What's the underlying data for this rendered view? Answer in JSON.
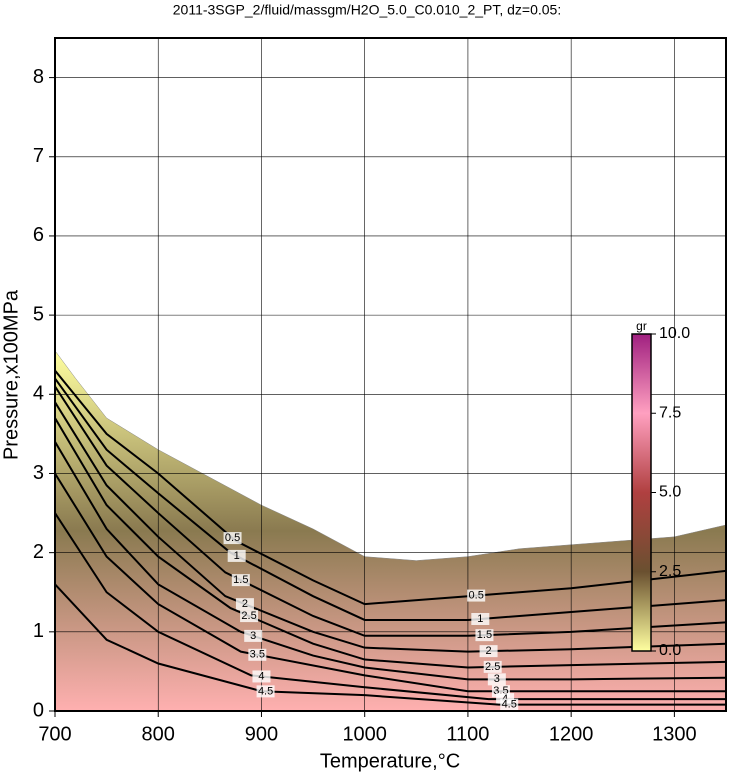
{
  "chart_data": {
    "type": "contour",
    "title": "2011-3SGP_2/fluid/massgm/H2O_5.0_C0.010_2_PT, dz=0.05:",
    "x_label": "Temperature,°C",
    "y_label": "Pressure,x100MPa",
    "xlim": [
      700,
      1350
    ],
    "ylim": [
      0,
      8.5
    ],
    "xticks": [
      700,
      800,
      900,
      1000,
      1100,
      1200,
      1300
    ],
    "yticks": [
      0,
      1,
      2,
      3,
      4,
      5,
      6,
      7,
      8
    ],
    "grid": true,
    "line_color": "#000000",
    "region": {
      "x": [
        700,
        720,
        750,
        800,
        850,
        900,
        950,
        1000,
        1050,
        1100,
        1150,
        1200,
        1250,
        1300,
        1350
      ],
      "y": [
        4.55,
        4.2,
        3.7,
        3.3,
        2.95,
        2.6,
        2.3,
        1.95,
        1.9,
        1.95,
        2.05,
        2.1,
        2.15,
        2.2,
        2.35
      ],
      "colors": [
        "#ffffa0",
        "#8a7a50",
        "#ffb0b0"
      ]
    },
    "series": [
      {
        "name": "0.5",
        "x": [
          700,
          750,
          800,
          875,
          950,
          1000,
          1100,
          1200,
          1350
        ],
        "values": [
          4.3,
          3.5,
          3.0,
          2.15,
          1.65,
          1.35,
          1.45,
          1.55,
          1.77
        ]
      },
      {
        "name": "1",
        "x": [
          700,
          750,
          800,
          870,
          950,
          1000,
          1100,
          1200,
          1350
        ],
        "values": [
          4.2,
          3.3,
          2.75,
          2.0,
          1.45,
          1.15,
          1.15,
          1.25,
          1.4
        ]
      },
      {
        "name": "1.5",
        "x": [
          700,
          750,
          800,
          865,
          950,
          1000,
          1100,
          1200,
          1350
        ],
        "values": [
          4.1,
          3.1,
          2.5,
          1.75,
          1.2,
          0.95,
          0.95,
          1.0,
          1.12
        ]
      },
      {
        "name": "2",
        "x": [
          700,
          750,
          800,
          865,
          950,
          1000,
          1100,
          1200,
          1350
        ],
        "values": [
          3.9,
          2.85,
          2.2,
          1.45,
          1.0,
          0.8,
          0.75,
          0.78,
          0.85
        ]
      },
      {
        "name": "2.5",
        "x": [
          700,
          750,
          800,
          870,
          950,
          1000,
          1100,
          1200,
          1350
        ],
        "values": [
          3.7,
          2.6,
          1.95,
          1.3,
          0.85,
          0.65,
          0.55,
          0.58,
          0.62
        ]
      },
      {
        "name": "3",
        "x": [
          700,
          750,
          800,
          880,
          950,
          1000,
          1100,
          1200,
          1350
        ],
        "values": [
          3.4,
          2.3,
          1.6,
          1.0,
          0.7,
          0.55,
          0.4,
          0.4,
          0.42
        ]
      },
      {
        "name": "3.5",
        "x": [
          700,
          750,
          800,
          880,
          1000,
          1100,
          1350
        ],
        "values": [
          3.0,
          1.95,
          1.35,
          0.75,
          0.45,
          0.25,
          0.25
        ]
      },
      {
        "name": "4",
        "x": [
          700,
          750,
          800,
          890,
          1000,
          1120,
          1350
        ],
        "values": [
          2.5,
          1.5,
          1.0,
          0.45,
          0.3,
          0.15,
          0.15
        ]
      },
      {
        "name": "4.5",
        "x": [
          700,
          750,
          800,
          900,
          1000,
          1130,
          1350
        ],
        "values": [
          1.6,
          0.9,
          0.6,
          0.25,
          0.2,
          0.08,
          0.08
        ]
      }
    ],
    "colorbar": {
      "label": "gr",
      "lim": [
        0,
        10
      ],
      "ticks": [
        {
          "value": 0,
          "label": "0.0"
        },
        {
          "value": 2.5,
          "label": "2.5"
        },
        {
          "value": 5,
          "label": "5.0"
        },
        {
          "value": 7.5,
          "label": "7.5"
        },
        {
          "value": 10,
          "label": "10.0"
        }
      ],
      "colors": [
        "#ffffa0",
        "#6a5030",
        "#b04040",
        "#ffa0c0",
        "#a02080"
      ]
    }
  }
}
